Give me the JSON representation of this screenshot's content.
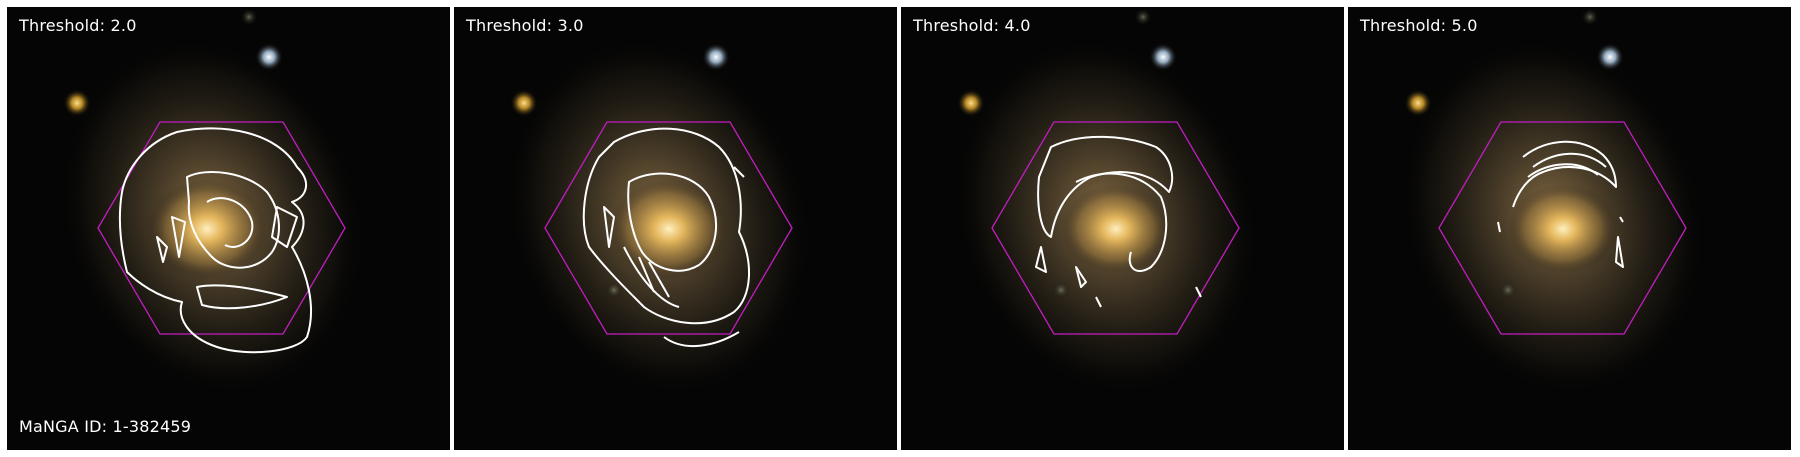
{
  "figure": {
    "panels": [
      {
        "threshold_label": "Threshold: 2.0",
        "level": 1
      },
      {
        "threshold_label": "Threshold: 3.0",
        "level": 2
      },
      {
        "threshold_label": "Threshold: 4.0",
        "level": 3
      },
      {
        "threshold_label": "Threshold: 5.0",
        "level": 4
      }
    ],
    "galaxy_id_label": "MaNGA ID: 1-382459",
    "colors": {
      "hexagon": "#c01ec0",
      "contour": "#ffffff",
      "galaxy_core": "#ffd98a",
      "galaxy_halo": "#6b5a3a",
      "background": "#050505",
      "star_yellow": "#f0c040",
      "star_blue": "#d8ecff"
    }
  }
}
